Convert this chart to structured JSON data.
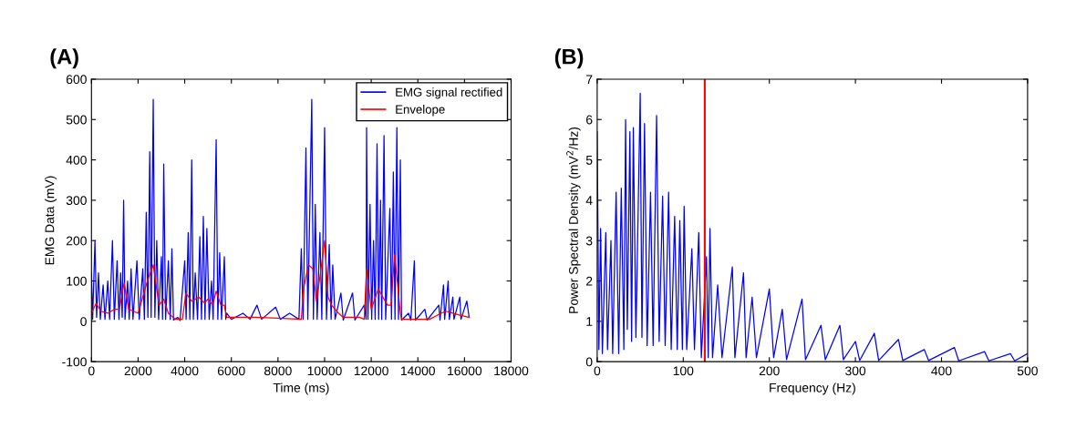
{
  "chart_data": [
    {
      "type": "line",
      "title": "(A)",
      "xlabel": "Time (ms)",
      "ylabel": "EMG Data (mV)",
      "xlim": [
        0,
        18000
      ],
      "xticks": [
        0,
        2000,
        4000,
        6000,
        8000,
        10000,
        12000,
        14000,
        16000,
        18000
      ],
      "ylim": [
        -100,
        600
      ],
      "yticks": [
        -100,
        0,
        100,
        200,
        300,
        400,
        500,
        600
      ],
      "legend": "top right",
      "grid": false,
      "series": [
        {
          "name": "EMG signal rectified",
          "color": "#0000ff",
          "x": [
            0,
            50,
            150,
            220,
            300,
            380,
            500,
            580,
            700,
            780,
            900,
            980,
            1100,
            1180,
            1250,
            1320,
            1380,
            1440,
            1550,
            1620,
            1700,
            1780,
            1950,
            2050,
            2200,
            2270,
            2350,
            2420,
            2500,
            2560,
            2650,
            2720,
            2800,
            2880,
            3000,
            3050,
            3100,
            3180,
            3300,
            3380,
            3450,
            3520,
            3700,
            3800,
            4000,
            4060,
            4150,
            4220,
            4300,
            4370,
            4450,
            4550,
            4650,
            4720,
            4800,
            4870,
            4950,
            5050,
            5150,
            5220,
            5350,
            5420,
            5500,
            5580,
            5700,
            5760,
            5800,
            6000,
            6500,
            6800,
            7100,
            7300,
            7900,
            8100,
            8500,
            8900,
            9000,
            9080,
            9200,
            9280,
            9450,
            9520,
            9600,
            9680,
            9800,
            9880,
            10000,
            10080,
            10200,
            10280,
            10350,
            10450,
            10700,
            10800,
            11200,
            11300,
            11700,
            11780,
            11800,
            11860,
            11950,
            12020,
            12100,
            12170,
            12250,
            12320,
            12400,
            12450,
            12550,
            12620,
            12800,
            12870,
            12950,
            13020,
            13100,
            13170,
            13250,
            13300,
            13600,
            13700,
            13850,
            13900,
            14300,
            14400,
            14900,
            14950,
            15100,
            15150,
            15300,
            15350,
            15500,
            15550,
            15800,
            15850,
            16100,
            16200
          ],
          "values": [
            120,
            5,
            200,
            10,
            120,
            5,
            90,
            5,
            100,
            5,
            200,
            5,
            150,
            5,
            120,
            10,
            300,
            5,
            100,
            5,
            130,
            5,
            150,
            5,
            130,
            5,
            270,
            10,
            420,
            10,
            550,
            10,
            200,
            5,
            160,
            5,
            390,
            5,
            150,
            5,
            180,
            3,
            10,
            2,
            150,
            5,
            220,
            5,
            400,
            5,
            120,
            5,
            210,
            5,
            260,
            5,
            230,
            5,
            100,
            5,
            450,
            5,
            170,
            5,
            160,
            5,
            20,
            5,
            20,
            5,
            40,
            5,
            35,
            5,
            20,
            5,
            180,
            5,
            430,
            5,
            550,
            5,
            290,
            5,
            220,
            5,
            480,
            5,
            190,
            5,
            140,
            5,
            70,
            3,
            70,
            3,
            40,
            5,
            480,
            5,
            290,
            5,
            200,
            5,
            440,
            5,
            300,
            5,
            460,
            5,
            280,
            5,
            370,
            5,
            480,
            5,
            400,
            3,
            20,
            3,
            150,
            3,
            30,
            3,
            40,
            3,
            90,
            5,
            100,
            5,
            60,
            5,
            60,
            5,
            50,
            10
          ]
        },
        {
          "name": "Envelope",
          "color": "#ff0000",
          "x": [
            0,
            200,
            400,
            700,
            1000,
            1200,
            1400,
            1600,
            2000,
            2200,
            2400,
            2650,
            2900,
            3100,
            3300,
            3600,
            3900,
            4050,
            4300,
            4600,
            4850,
            5000,
            5200,
            5350,
            5550,
            5700,
            5800,
            7000,
            8000,
            9000,
            9100,
            9300,
            9500,
            9650,
            9800,
            10000,
            10150,
            10300,
            10600,
            10800,
            11500,
            11700,
            11800,
            12000,
            12300,
            12500,
            12700,
            12850,
            13000,
            13100,
            13250,
            13300,
            14500,
            15000,
            15200,
            15500,
            15800,
            16200
          ],
          "values": [
            20,
            45,
            25,
            20,
            30,
            30,
            95,
            30,
            20,
            60,
            100,
            140,
            40,
            55,
            20,
            5,
            5,
            70,
            50,
            60,
            45,
            55,
            40,
            75,
            40,
            40,
            10,
            10,
            8,
            5,
            80,
            140,
            130,
            50,
            110,
            200,
            60,
            40,
            20,
            10,
            10,
            5,
            130,
            30,
            80,
            60,
            40,
            40,
            165,
            110,
            20,
            5,
            5,
            20,
            25,
            20,
            15,
            10
          ]
        }
      ]
    },
    {
      "type": "line",
      "title": "(B)",
      "xlabel": "Frequency (Hz)",
      "ylabel": "Power Spectral Density (mV$^{2}$/Hz)",
      "xlim": [
        0,
        500
      ],
      "xticks": [
        0,
        100,
        200,
        300,
        400,
        500
      ],
      "ylim": [
        0,
        7
      ],
      "yticks": [
        0,
        1,
        2,
        3,
        4,
        5,
        6,
        7
      ],
      "legend": false,
      "grid": false,
      "ref_lines": [
        {
          "axis": "x",
          "value": 125,
          "color": "#ff0000"
        }
      ],
      "series": [
        {
          "color": "#0000ff",
          "x": [
            0,
            2,
            4,
            6,
            10,
            12,
            16,
            18,
            22,
            25,
            28,
            31,
            33,
            35,
            38,
            40,
            42,
            45,
            50,
            52,
            55,
            58,
            62,
            65,
            69,
            72,
            76,
            79,
            83,
            86,
            90,
            93,
            96,
            99,
            101,
            104,
            110,
            113,
            118,
            121,
            127,
            129,
            131,
            134,
            140,
            145,
            157,
            160,
            170,
            173,
            180,
            185,
            200,
            205,
            215,
            220,
            238,
            242,
            260,
            265,
            282,
            286,
            300,
            305,
            322,
            327,
            350,
            355,
            380,
            385,
            415,
            420,
            450,
            455,
            480,
            485,
            500
          ],
          "values": [
            5.7,
            0.3,
            3.3,
            0.2,
            3.2,
            0.3,
            3,
            0.2,
            4.2,
            0.2,
            4.3,
            0.3,
            6,
            0.8,
            5.7,
            0.5,
            5.8,
            0.6,
            6.65,
            0.6,
            5.9,
            0.4,
            4.2,
            0.4,
            6.1,
            0.5,
            4.1,
            0.4,
            4.2,
            0.3,
            3.6,
            0.3,
            3.5,
            0.3,
            3.85,
            0.3,
            2.8,
            0.3,
            3.2,
            0.1,
            2.6,
            0.1,
            3.3,
            0.1,
            1.9,
            0.1,
            2.35,
            0.1,
            2.2,
            0.1,
            1.6,
            0.1,
            1.8,
            0.1,
            1.3,
            0.05,
            1.55,
            0.05,
            0.9,
            0.05,
            0.9,
            0.05,
            0.5,
            0.03,
            0.7,
            0.03,
            0.55,
            0.03,
            0.3,
            0.03,
            0.35,
            0.02,
            0.25,
            0.02,
            0.2,
            0.02,
            0.2
          ]
        }
      ]
    }
  ]
}
